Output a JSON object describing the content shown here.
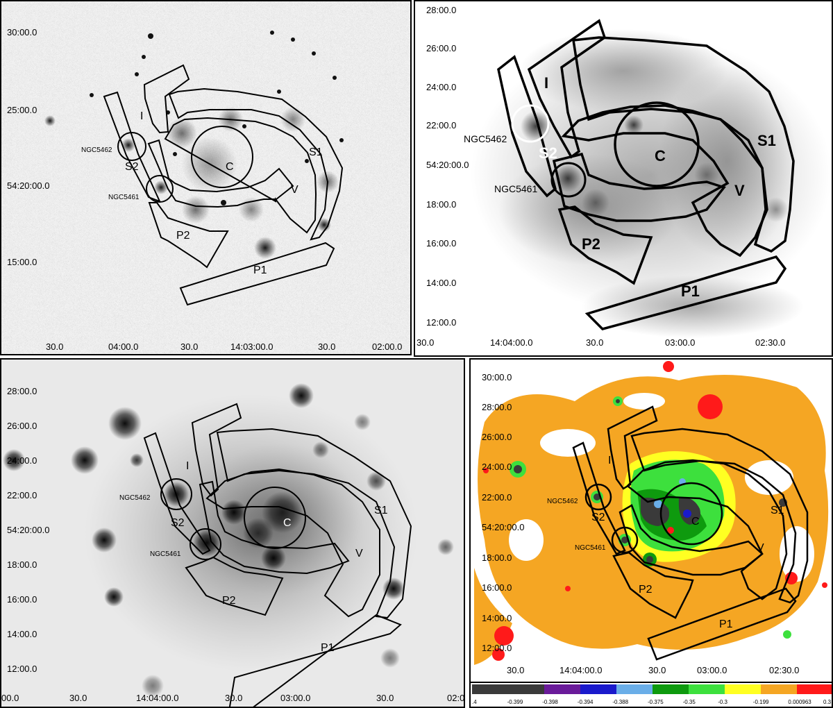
{
  "panels": [
    {
      "name": "top-left",
      "dec_ticks": [
        "30:00.0",
        "25:00.0",
        "54:20:00.0",
        "15:00.0"
      ],
      "ra_ticks": [
        "30.0",
        "04:00.0",
        "30.0",
        "14:03:00.0",
        "30.0",
        "02:00.0"
      ],
      "regions": {
        "I": "I",
        "S1": "S1",
        "S2": "S2",
        "C": "C",
        "V": "V",
        "P1": "P1",
        "P2": "P2"
      },
      "sources": {
        "n5462": "NGC5462",
        "n5461": "NGC5461"
      }
    },
    {
      "name": "top-right",
      "dec_ticks": [
        "28:00.0",
        "26:00.0",
        "24:00.0",
        "22:00.0",
        "54:20:00.0",
        "18:00.0",
        "16:00.0",
        "14:00.0",
        "12:00.0"
      ],
      "ra_ticks": [
        "30.0",
        "14:04:00.0",
        "30.0",
        "03:00.0",
        "02:30.0"
      ],
      "regions": {
        "I": "I",
        "S1": "S1",
        "S2": "S2",
        "C": "C",
        "V": "V",
        "P1": "P1",
        "P2": "P2"
      },
      "sources": {
        "n5462": "NGC5462",
        "n5461": "NGC5461"
      }
    },
    {
      "name": "bottom-left",
      "dec_ticks": [
        "28:00.0",
        "26:00.0",
        "24:00.0",
        "22:00.0",
        "54:20:00.0",
        "18:00.0",
        "16:00.0",
        "14:00.0",
        "12:00.0"
      ],
      "ra_ticks": [
        "00.0",
        "30.0",
        "14:04:00.0",
        "30.0",
        "03:00.0",
        "30.0",
        "02:0"
      ],
      "regions": {
        "I": "I",
        "S1": "S1",
        "S2": "S2",
        "C": "C",
        "V": "V",
        "P1": "P1",
        "P2": "P2"
      },
      "sources": {
        "n5462": "NGC5462",
        "n5461": "NGC5461"
      }
    },
    {
      "name": "bottom-right",
      "dec_ticks": [
        "30:00.0",
        "28:00.0",
        "26:00.0",
        "24:00.0",
        "22:00.0",
        "54:20:00.0",
        "18:00.0",
        "16:00.0",
        "14:00.0",
        "12:00.0"
      ],
      "ra_ticks": [
        "30.0",
        "14:04:00.0",
        "30.0",
        "03:00.0",
        "02:30.0"
      ],
      "regions": {
        "I": "I",
        "S1": "S1",
        "S2": "S2",
        "C": "C",
        "V": "V",
        "P1": "P1",
        "P2": "P2"
      },
      "sources": {
        "n5462": "NGC5462",
        "n5461": "NGC5461"
      }
    }
  ],
  "colorbar": {
    "labels": [
      ".4",
      "-0.399",
      "-0.398",
      "-0.394",
      "-0.388",
      "-0.375",
      "-0.35",
      "-0.3",
      "-0.199",
      "0.000963",
      "0.3"
    ],
    "colors": [
      "#3a3a3a",
      "#3a3a3a",
      "#6a1b9a",
      "#1a1acc",
      "#6aaee8",
      "#0e9a0e",
      "#3de03d",
      "#ffff22",
      "#f5a623",
      "#ff1a1a"
    ]
  }
}
